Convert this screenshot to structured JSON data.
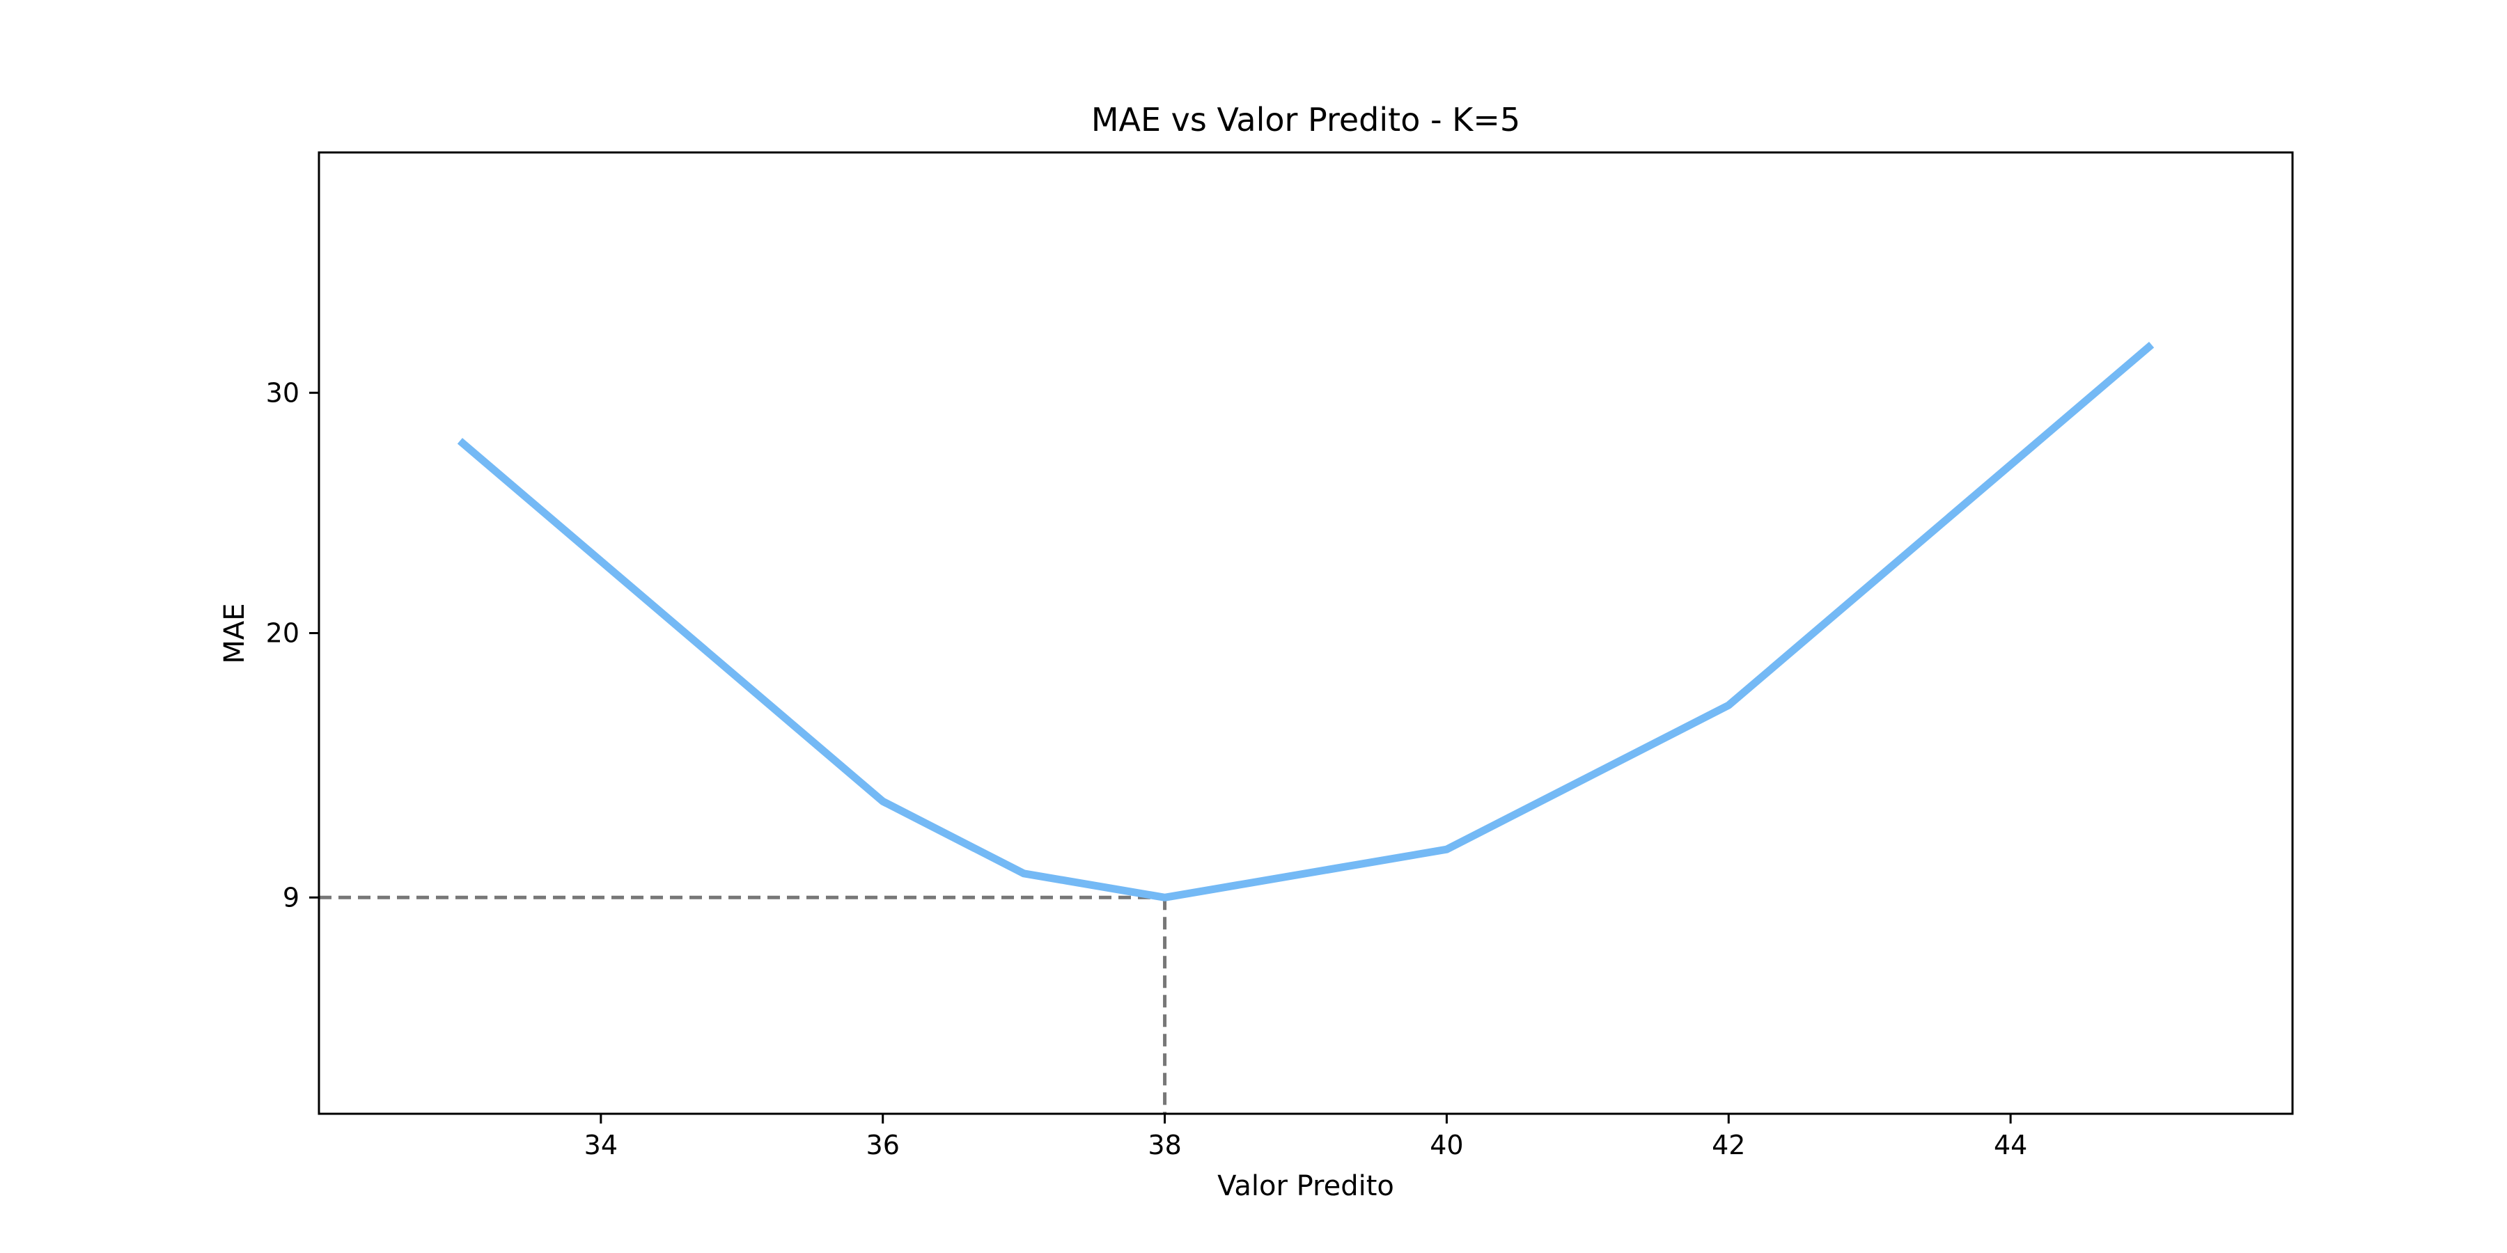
{
  "chart_data": {
    "type": "line",
    "title": "MAE vs Valor Predito - K=5",
    "xlabel": "Valor Predito",
    "ylabel": "MAE",
    "xlim": [
      32.0,
      46.0
    ],
    "ylim": [
      0.0,
      40.0
    ],
    "x_ticks": [
      34,
      36,
      38,
      40,
      42,
      44
    ],
    "y_ticks": [
      {
        "value": 9,
        "label": "9"
      },
      {
        "value": 20,
        "label": "20"
      },
      {
        "value": 30,
        "label": "30"
      }
    ],
    "series": [
      {
        "x": [
          33,
          36,
          37,
          38,
          40,
          42,
          45
        ],
        "y": [
          28.0,
          13.0,
          10.0,
          9.0,
          11.0,
          17.0,
          32.0
        ],
        "color": "#74b9f5"
      }
    ],
    "reference_lines": {
      "x": 38,
      "y": 9,
      "color": "#777777",
      "style": "dashed"
    },
    "grid": false,
    "legend": "none"
  }
}
